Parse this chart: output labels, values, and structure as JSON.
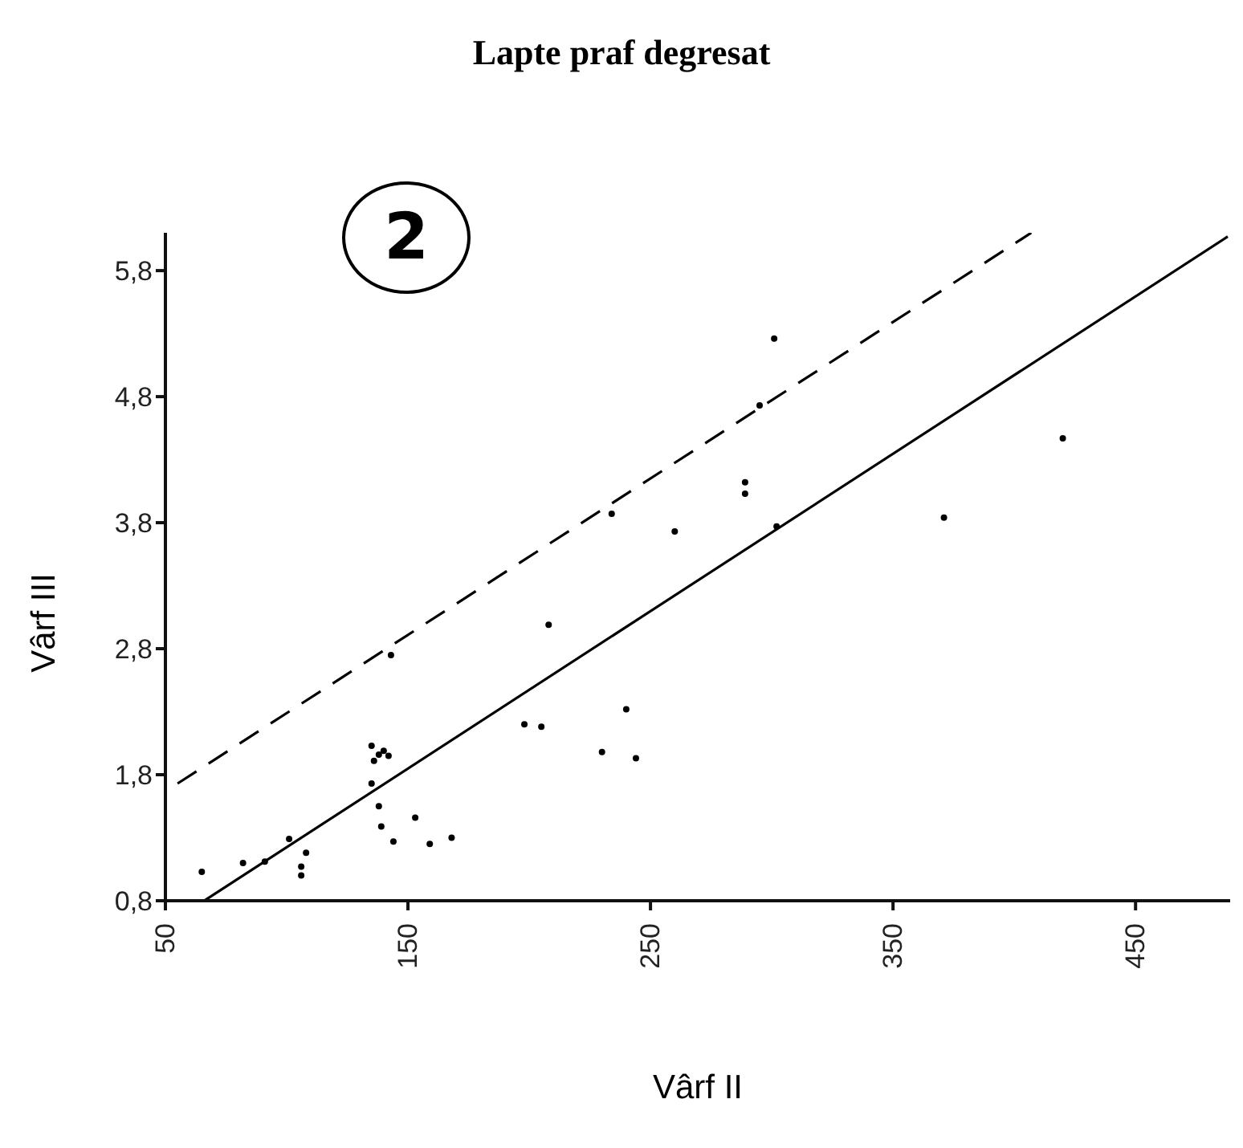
{
  "chart_data": {
    "type": "scatter",
    "title": "Lapte praf degresat",
    "xlabel": "Vârf II",
    "ylabel": "Vârf III",
    "annotations": [
      "2"
    ],
    "xlim": [
      50,
      489
    ],
    "xticks": [
      50,
      150,
      250,
      350,
      450
    ],
    "ylim": [
      0.8,
      6.1
    ],
    "yticks": [
      {
        "value": 0.8,
        "label": "0,8"
      },
      {
        "value": 1.8,
        "label": "1,8"
      },
      {
        "value": 2.8,
        "label": "2,8"
      },
      {
        "value": 3.8,
        "label": "3,8"
      },
      {
        "value": 4.8,
        "label": "4,8"
      },
      {
        "value": 5.8,
        "label": "5,8"
      }
    ],
    "series": [
      {
        "color": "#000000",
        "marker": "circle",
        "x": [
          65,
          82,
          91,
          101,
          106,
          106,
          108,
          135,
          136,
          138,
          140,
          142,
          135,
          138,
          139,
          144,
          153,
          159,
          168,
          143,
          198,
          205,
          208,
          230,
          240,
          244,
          234,
          260,
          289,
          289,
          295,
          301,
          302,
          371,
          420
        ],
        "values": [
          1.03,
          1.1,
          1.11,
          1.29,
          1.07,
          1.0,
          1.18,
          2.03,
          1.91,
          1.96,
          1.99,
          1.95,
          1.73,
          1.55,
          1.39,
          1.27,
          1.46,
          1.25,
          1.3,
          2.75,
          2.2,
          2.18,
          2.99,
          1.98,
          2.32,
          1.93,
          3.87,
          3.73,
          4.12,
          4.03,
          4.73,
          5.26,
          3.77,
          3.84,
          4.47
        ]
      },
      {
        "type": "line",
        "color": "#000000",
        "line_style": "solid",
        "x": [
          66,
          488
        ],
        "values": [
          0.8,
          6.07
        ]
      },
      {
        "type": "line",
        "color": "#000000",
        "line_style": "dashed",
        "x": [
          55,
          407
        ],
        "values": [
          1.73,
          6.1
        ]
      }
    ]
  }
}
